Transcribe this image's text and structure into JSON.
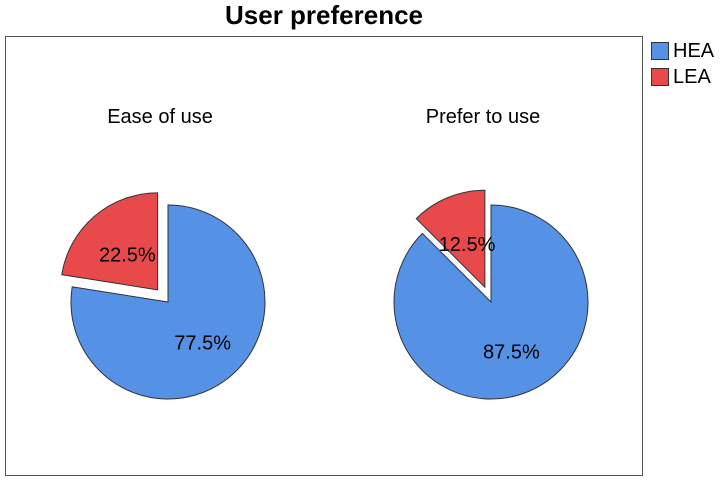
{
  "chart_data": {
    "type": "pie",
    "title": "User preference",
    "legend": {
      "placement": "top-right",
      "entries": [
        "HEA",
        "LEA"
      ]
    },
    "colors": {
      "HEA": "#5592e6",
      "LEA": "#e84a4c"
    },
    "pies": [
      {
        "title": "Ease of use",
        "slices": [
          {
            "label": "HEA",
            "value": 77.5,
            "display": "77.5%"
          },
          {
            "label": "LEA",
            "value": 22.5,
            "display": "22.5%",
            "exploded": true
          }
        ]
      },
      {
        "title": "Prefer to use",
        "slices": [
          {
            "label": "HEA",
            "value": 87.5,
            "display": "87.5%"
          },
          {
            "label": "LEA",
            "value": 12.5,
            "display": "12.5%",
            "exploded": true
          }
        ]
      }
    ]
  }
}
